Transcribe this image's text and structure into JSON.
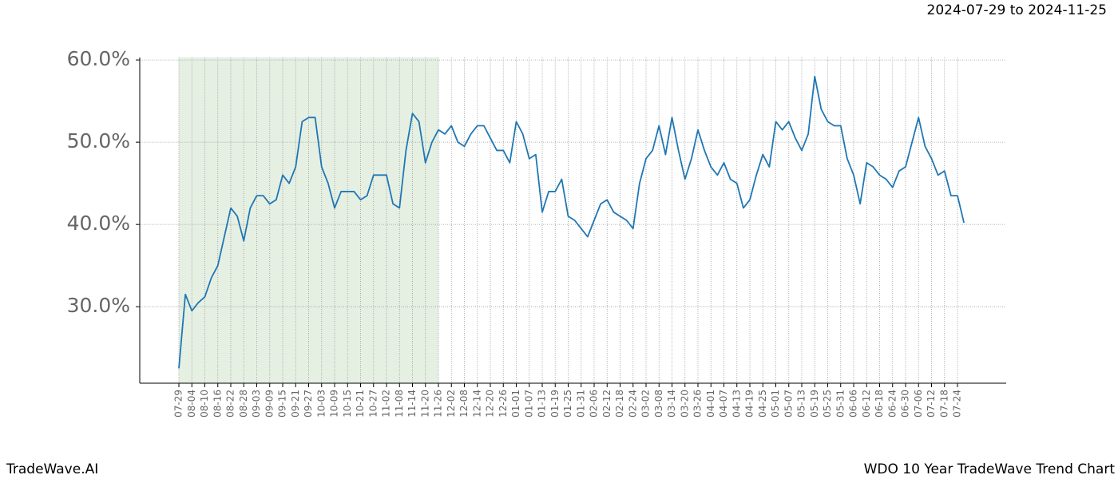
{
  "chart_data": {
    "type": "line",
    "title": "2024-07-29 to 2024-11-25",
    "footer_left": "TradeWave.AI",
    "footer_right": "WDO 10 Year TradeWave Trend Chart",
    "categories": [
      "07-29",
      null,
      "08-04",
      null,
      "08-10",
      null,
      "08-16",
      null,
      "08-22",
      null,
      "08-28",
      null,
      "09-03",
      null,
      "09-09",
      null,
      "09-15",
      null,
      "09-21",
      null,
      "09-27",
      null,
      "10-03",
      null,
      "10-09",
      null,
      "10-15",
      null,
      "10-21",
      null,
      "10-27",
      null,
      "11-02",
      null,
      "11-08",
      null,
      "11-14",
      null,
      "11-20",
      null,
      "11-26",
      null,
      "12-02",
      null,
      "12-08",
      null,
      "12-14",
      null,
      "12-20",
      null,
      "12-26",
      null,
      "01-01",
      null,
      "01-07",
      null,
      "01-13",
      null,
      "01-19",
      null,
      "01-25",
      null,
      "01-31",
      null,
      "02-06",
      null,
      "02-12",
      null,
      "02-18",
      null,
      "02-24",
      null,
      "03-02",
      null,
      "03-08",
      null,
      "03-14",
      null,
      "03-20",
      null,
      "03-26",
      null,
      "04-01",
      null,
      "04-07",
      null,
      "04-13",
      null,
      "04-19",
      null,
      "04-25",
      null,
      "05-01",
      null,
      "05-07",
      null,
      "05-13",
      null,
      "05-19",
      null,
      "05-25",
      null,
      "05-31",
      null,
      "06-06",
      null,
      "06-12",
      null,
      "06-18",
      null,
      "06-24",
      null,
      "06-30",
      null,
      "07-06",
      null,
      "07-12",
      null,
      "07-18",
      null,
      "07-24",
      null
    ],
    "series": [
      {
        "color": "#1f77b4",
        "values": [
          22.5,
          31.5,
          29.5,
          30.5,
          31.2,
          33.5,
          35,
          38.5,
          42,
          41,
          38,
          42,
          43.5,
          43.5,
          42.5,
          43,
          46,
          45,
          47,
          52.5,
          53,
          53,
          47,
          45,
          42,
          44,
          44,
          44,
          43,
          43.5,
          46,
          46,
          46,
          42.5,
          42,
          49,
          53.5,
          52.5,
          47.5,
          50,
          51.5,
          51,
          52,
          50,
          49.5,
          51,
          52,
          52,
          50.5,
          49,
          49,
          47.5,
          52.5,
          51,
          48,
          48.5,
          41.5,
          44,
          44,
          45.5,
          41,
          40.5,
          39.5,
          38.5,
          40.5,
          42.5,
          43,
          41.5,
          41,
          40.5,
          39.5,
          45,
          48,
          49,
          52,
          48.5,
          53,
          49,
          45.5,
          48,
          51.5,
          49,
          47,
          46,
          47.5,
          45.5,
          45,
          42,
          43,
          46,
          48.5,
          47,
          52.5,
          51.5,
          52.5,
          50.5,
          49,
          51,
          58,
          54,
          52.5,
          52,
          52,
          48,
          46,
          42.5,
          47.5,
          47,
          46,
          45.5,
          44.5,
          46.5,
          47,
          50,
          53,
          49.5,
          48,
          46,
          46.5,
          43.5,
          43.5,
          40.2
        ]
      }
    ],
    "ylim": [
      20.7,
      60.3
    ],
    "yticks": [
      {
        "value": 30,
        "label": "30.0%"
      },
      {
        "value": 40,
        "label": "40.0%"
      },
      {
        "value": 50,
        "label": "50.0%"
      },
      {
        "value": 60,
        "label": "60.0%"
      }
    ],
    "grid": true,
    "highlight_range": [
      0,
      40
    ],
    "highlight_color": "#e5f0e3"
  }
}
